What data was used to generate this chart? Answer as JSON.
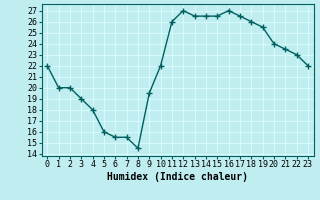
{
  "x": [
    0,
    1,
    2,
    3,
    4,
    5,
    6,
    7,
    8,
    9,
    10,
    11,
    12,
    13,
    14,
    15,
    16,
    17,
    18,
    19,
    20,
    21,
    22,
    23
  ],
  "y": [
    22,
    20,
    20,
    19,
    18,
    16,
    15.5,
    15.5,
    14.5,
    19.5,
    22,
    26,
    27,
    26.5,
    26.5,
    26.5,
    27,
    26.5,
    26,
    25.5,
    24,
    23.5,
    23,
    22
  ],
  "line_color": "#006060",
  "marker_color": "#006060",
  "bg_color": "#c0eef0",
  "grid_color": "#e0ffff",
  "xlabel": "Humidex (Indice chaleur)",
  "xlabel_fontsize": 7,
  "xlim": [
    -0.5,
    23.5
  ],
  "ylim": [
    13.8,
    27.6
  ],
  "yticks": [
    14,
    15,
    16,
    17,
    18,
    19,
    20,
    21,
    22,
    23,
    24,
    25,
    26,
    27
  ],
  "xtick_labels": [
    "0",
    "1",
    "2",
    "3",
    "4",
    "5",
    "6",
    "7",
    "8",
    "9",
    "10",
    "11",
    "12",
    "13",
    "14",
    "15",
    "16",
    "17",
    "18",
    "19",
    "20",
    "21",
    "22",
    "23"
  ],
  "tick_fontsize": 6,
  "line_width": 1.0,
  "marker_size": 4
}
